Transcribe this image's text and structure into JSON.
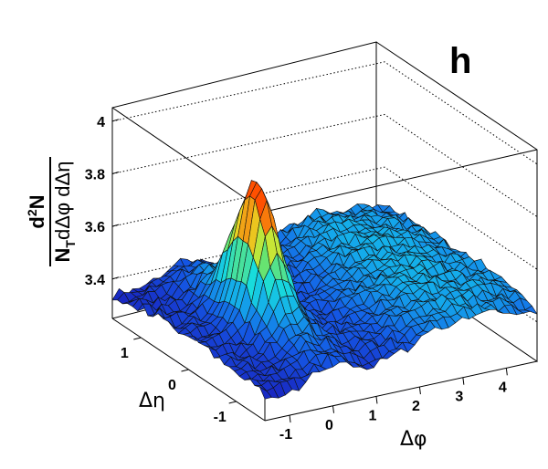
{
  "panel_label": "h",
  "chart_data": {
    "type": "surface3d",
    "title": "",
    "xlabel": "Δφ",
    "ylabel": "Δη",
    "zlabel": {
      "numerator": "d",
      "numerator_sup": "2",
      "numerator_rest": "N",
      "denominator": "N",
      "denominator_sub": "T",
      "denominator_rest": "dΔφ dΔη"
    },
    "x_ticks": [
      "-1",
      "0",
      "1",
      "2",
      "3",
      "4"
    ],
    "y_ticks": [
      "1",
      "0",
      "-1"
    ],
    "z_ticks": [
      "3.4",
      "3.6",
      "3.8",
      "4"
    ],
    "xlim": [
      -1.57,
      4.71
    ],
    "ylim": [
      -1.6,
      1.6
    ],
    "zlim": [
      3.25,
      4.1
    ],
    "grid": true,
    "colormap": "rainbow (blue to red by height)",
    "surface": {
      "baseline_near_side": 3.37,
      "baseline_away_side": 3.47,
      "near_side_peak": {
        "x": 0,
        "y": 0,
        "z": 3.8
      },
      "near_side_ridge_along_eta": {
        "x": 0,
        "z_at_edges": 3.5
      },
      "away_side_ridge": {
        "x": 3.14,
        "z": 3.5
      }
    }
  },
  "colors": {
    "frame": "#000000",
    "low": "#1a2ec8",
    "mid": "#18d2dc",
    "high": "#ff5a00"
  }
}
